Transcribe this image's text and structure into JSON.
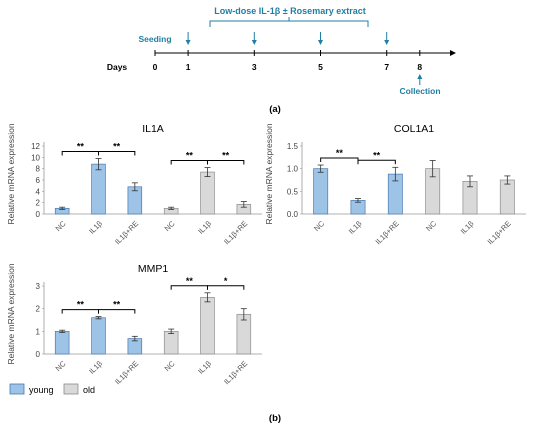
{
  "timeline": {
    "treatment_label": "Low-dose IL-1β ± Rosemary extract",
    "seeding_label": "Seeding",
    "collection_label": "Collection",
    "days_label": "Days",
    "day_ticks": [
      0,
      1,
      3,
      5,
      7,
      8
    ],
    "treatment_days": [
      1,
      3,
      5,
      7
    ],
    "seeding_day": 0,
    "collection_day": 8,
    "panel_label": "(a)"
  },
  "panel_b_label": "(b)",
  "legend": {
    "items": [
      {
        "label": "young",
        "color": "#9dc3e6"
      },
      {
        "label": "old",
        "color": "#d9d9d9"
      }
    ]
  },
  "colors": {
    "timeline_accent": "#1f7fa3",
    "young": "#9dc3e6",
    "old": "#d9d9d9",
    "bar_stroke": "#4a7ab0",
    "old_stroke": "#8c8c8c"
  },
  "chart_data": [
    {
      "type": "bar",
      "title": "IL1A",
      "ylabel": "Relative mRNA expression",
      "categories": [
        "NC",
        "IL1β",
        "IL1β+RE",
        "NC",
        "IL1β",
        "IL1β+RE"
      ],
      "groups": [
        "young",
        "young",
        "young",
        "old",
        "old",
        "old"
      ],
      "values": [
        1.0,
        8.8,
        4.8,
        1.0,
        7.4,
        1.7
      ],
      "errors": [
        0.2,
        1.0,
        0.7,
        0.2,
        0.8,
        0.5
      ],
      "ylim": [
        0,
        12
      ],
      "yticks": [
        0,
        2,
        4,
        6,
        8,
        10,
        12
      ],
      "significance": [
        {
          "from": 0,
          "to": 1,
          "label": "**"
        },
        {
          "from": 1,
          "to": 2,
          "label": "**"
        },
        {
          "from": 3,
          "to": 4,
          "label": "**"
        },
        {
          "from": 4,
          "to": 5,
          "label": "**"
        }
      ]
    },
    {
      "type": "bar",
      "title": "COL1A1",
      "ylabel": "Relative mRNA expression",
      "categories": [
        "NC",
        "IL1β",
        "IL1β+RE",
        "NC",
        "IL1β",
        "IL1β+RE"
      ],
      "groups": [
        "young",
        "young",
        "young",
        "old",
        "old",
        "old"
      ],
      "values": [
        1.0,
        0.3,
        0.88,
        1.0,
        0.72,
        0.75
      ],
      "errors": [
        0.08,
        0.04,
        0.15,
        0.18,
        0.12,
        0.09
      ],
      "ylim": [
        0,
        1.5
      ],
      "yticks": [
        0.0,
        0.5,
        1.0,
        1.5
      ],
      "significance": [
        {
          "from": 0,
          "to": 1,
          "label": "**"
        },
        {
          "from": 1,
          "to": 2,
          "label": "**"
        }
      ]
    },
    {
      "type": "bar",
      "title": "MMP1",
      "ylabel": "Relative mRNA expression",
      "categories": [
        "NC",
        "IL1β",
        "IL1β+RE",
        "NC",
        "IL1β",
        "IL1β+RE"
      ],
      "groups": [
        "young",
        "young",
        "young",
        "old",
        "old",
        "old"
      ],
      "values": [
        1.0,
        1.6,
        0.68,
        1.0,
        2.5,
        1.75
      ],
      "errors": [
        0.05,
        0.05,
        0.1,
        0.1,
        0.2,
        0.25
      ],
      "ylim": [
        0,
        3
      ],
      "yticks": [
        0,
        1,
        2,
        3
      ],
      "significance": [
        {
          "from": 0,
          "to": 1,
          "label": "**"
        },
        {
          "from": 1,
          "to": 2,
          "label": "**"
        },
        {
          "from": 3,
          "to": 4,
          "label": "**"
        },
        {
          "from": 4,
          "to": 5,
          "label": "*"
        }
      ]
    }
  ]
}
